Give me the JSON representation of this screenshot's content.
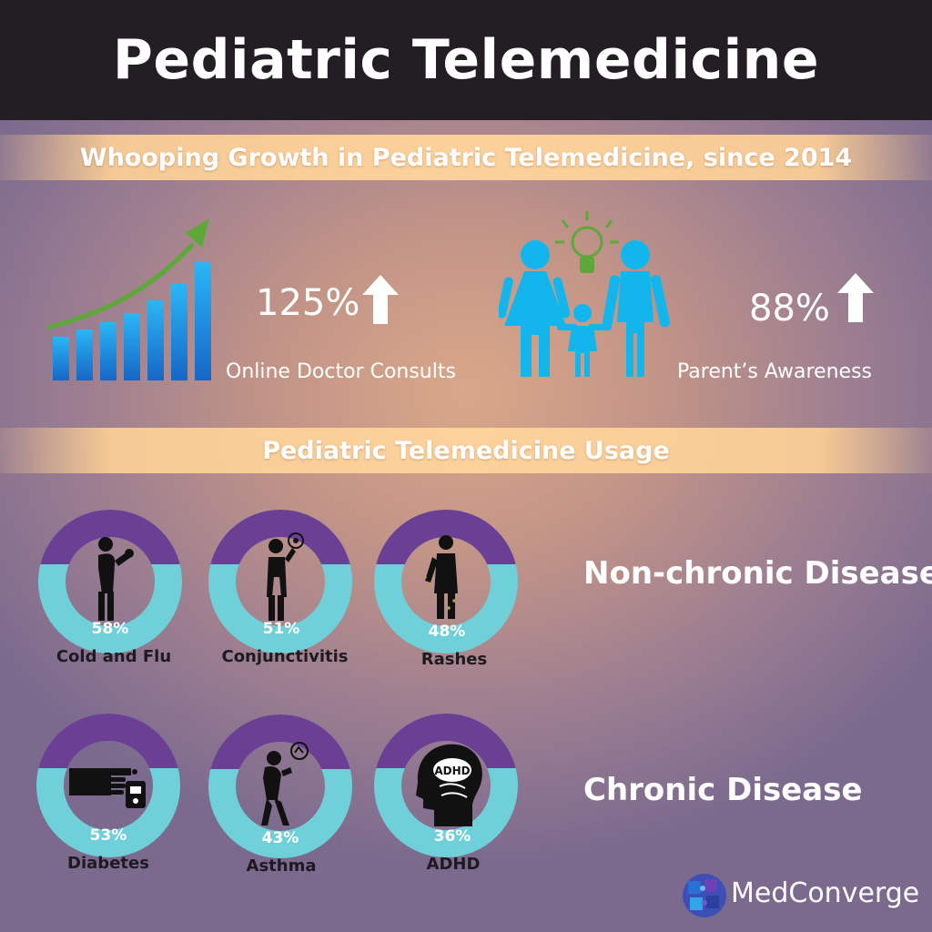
{
  "title": "Pediatric Telemedicine",
  "growth_section": {
    "heading": "Whooping Growth in Pediatric Telemedicine, since 2014",
    "stats": [
      {
        "value": "125%",
        "label": "Online Doctor Consults",
        "icon": "bar-growth-icon"
      },
      {
        "value": "88%",
        "label": "Parent’s Awareness",
        "icon": "family-icon"
      }
    ]
  },
  "usage_section": {
    "heading": "Pediatric Telemedicine Usage",
    "categories": [
      "Non-chronic Disease",
      "Chronic Disease"
    ],
    "items": [
      {
        "name": "Cold and Flu",
        "percent": "58%",
        "value": 58,
        "icon": "sneezing-person-icon",
        "group": "Non-chronic Disease"
      },
      {
        "name": "Conjunctivitis",
        "percent": "51%",
        "value": 51,
        "icon": "eye-rubbing-person-icon",
        "group": "Non-chronic Disease"
      },
      {
        "name": "Rashes",
        "percent": "48%",
        "value": 48,
        "icon": "scratching-person-icon",
        "group": "Non-chronic Disease"
      },
      {
        "name": "Diabetes",
        "percent": "53%",
        "value": 53,
        "icon": "glucose-meter-icon",
        "group": "Chronic Disease"
      },
      {
        "name": "Asthma",
        "percent": "43%",
        "value": 43,
        "icon": "coughing-person-icon",
        "group": "Chronic Disease"
      },
      {
        "name": "ADHD",
        "percent": "36%",
        "value": 36,
        "icon": "adhd-head-icon",
        "group": "Chronic Disease"
      }
    ]
  },
  "brand": {
    "name": "MedConverge",
    "icon": "puzzle-globe-logo"
  },
  "colors": {
    "header_bg": "#231d24",
    "bar_blue": "#1e8fe0",
    "family_cyan": "#12b6ec",
    "donut_purple": "#6b3f94",
    "donut_teal": "#6fd0d9",
    "arrow_green": "#5ea83a"
  }
}
